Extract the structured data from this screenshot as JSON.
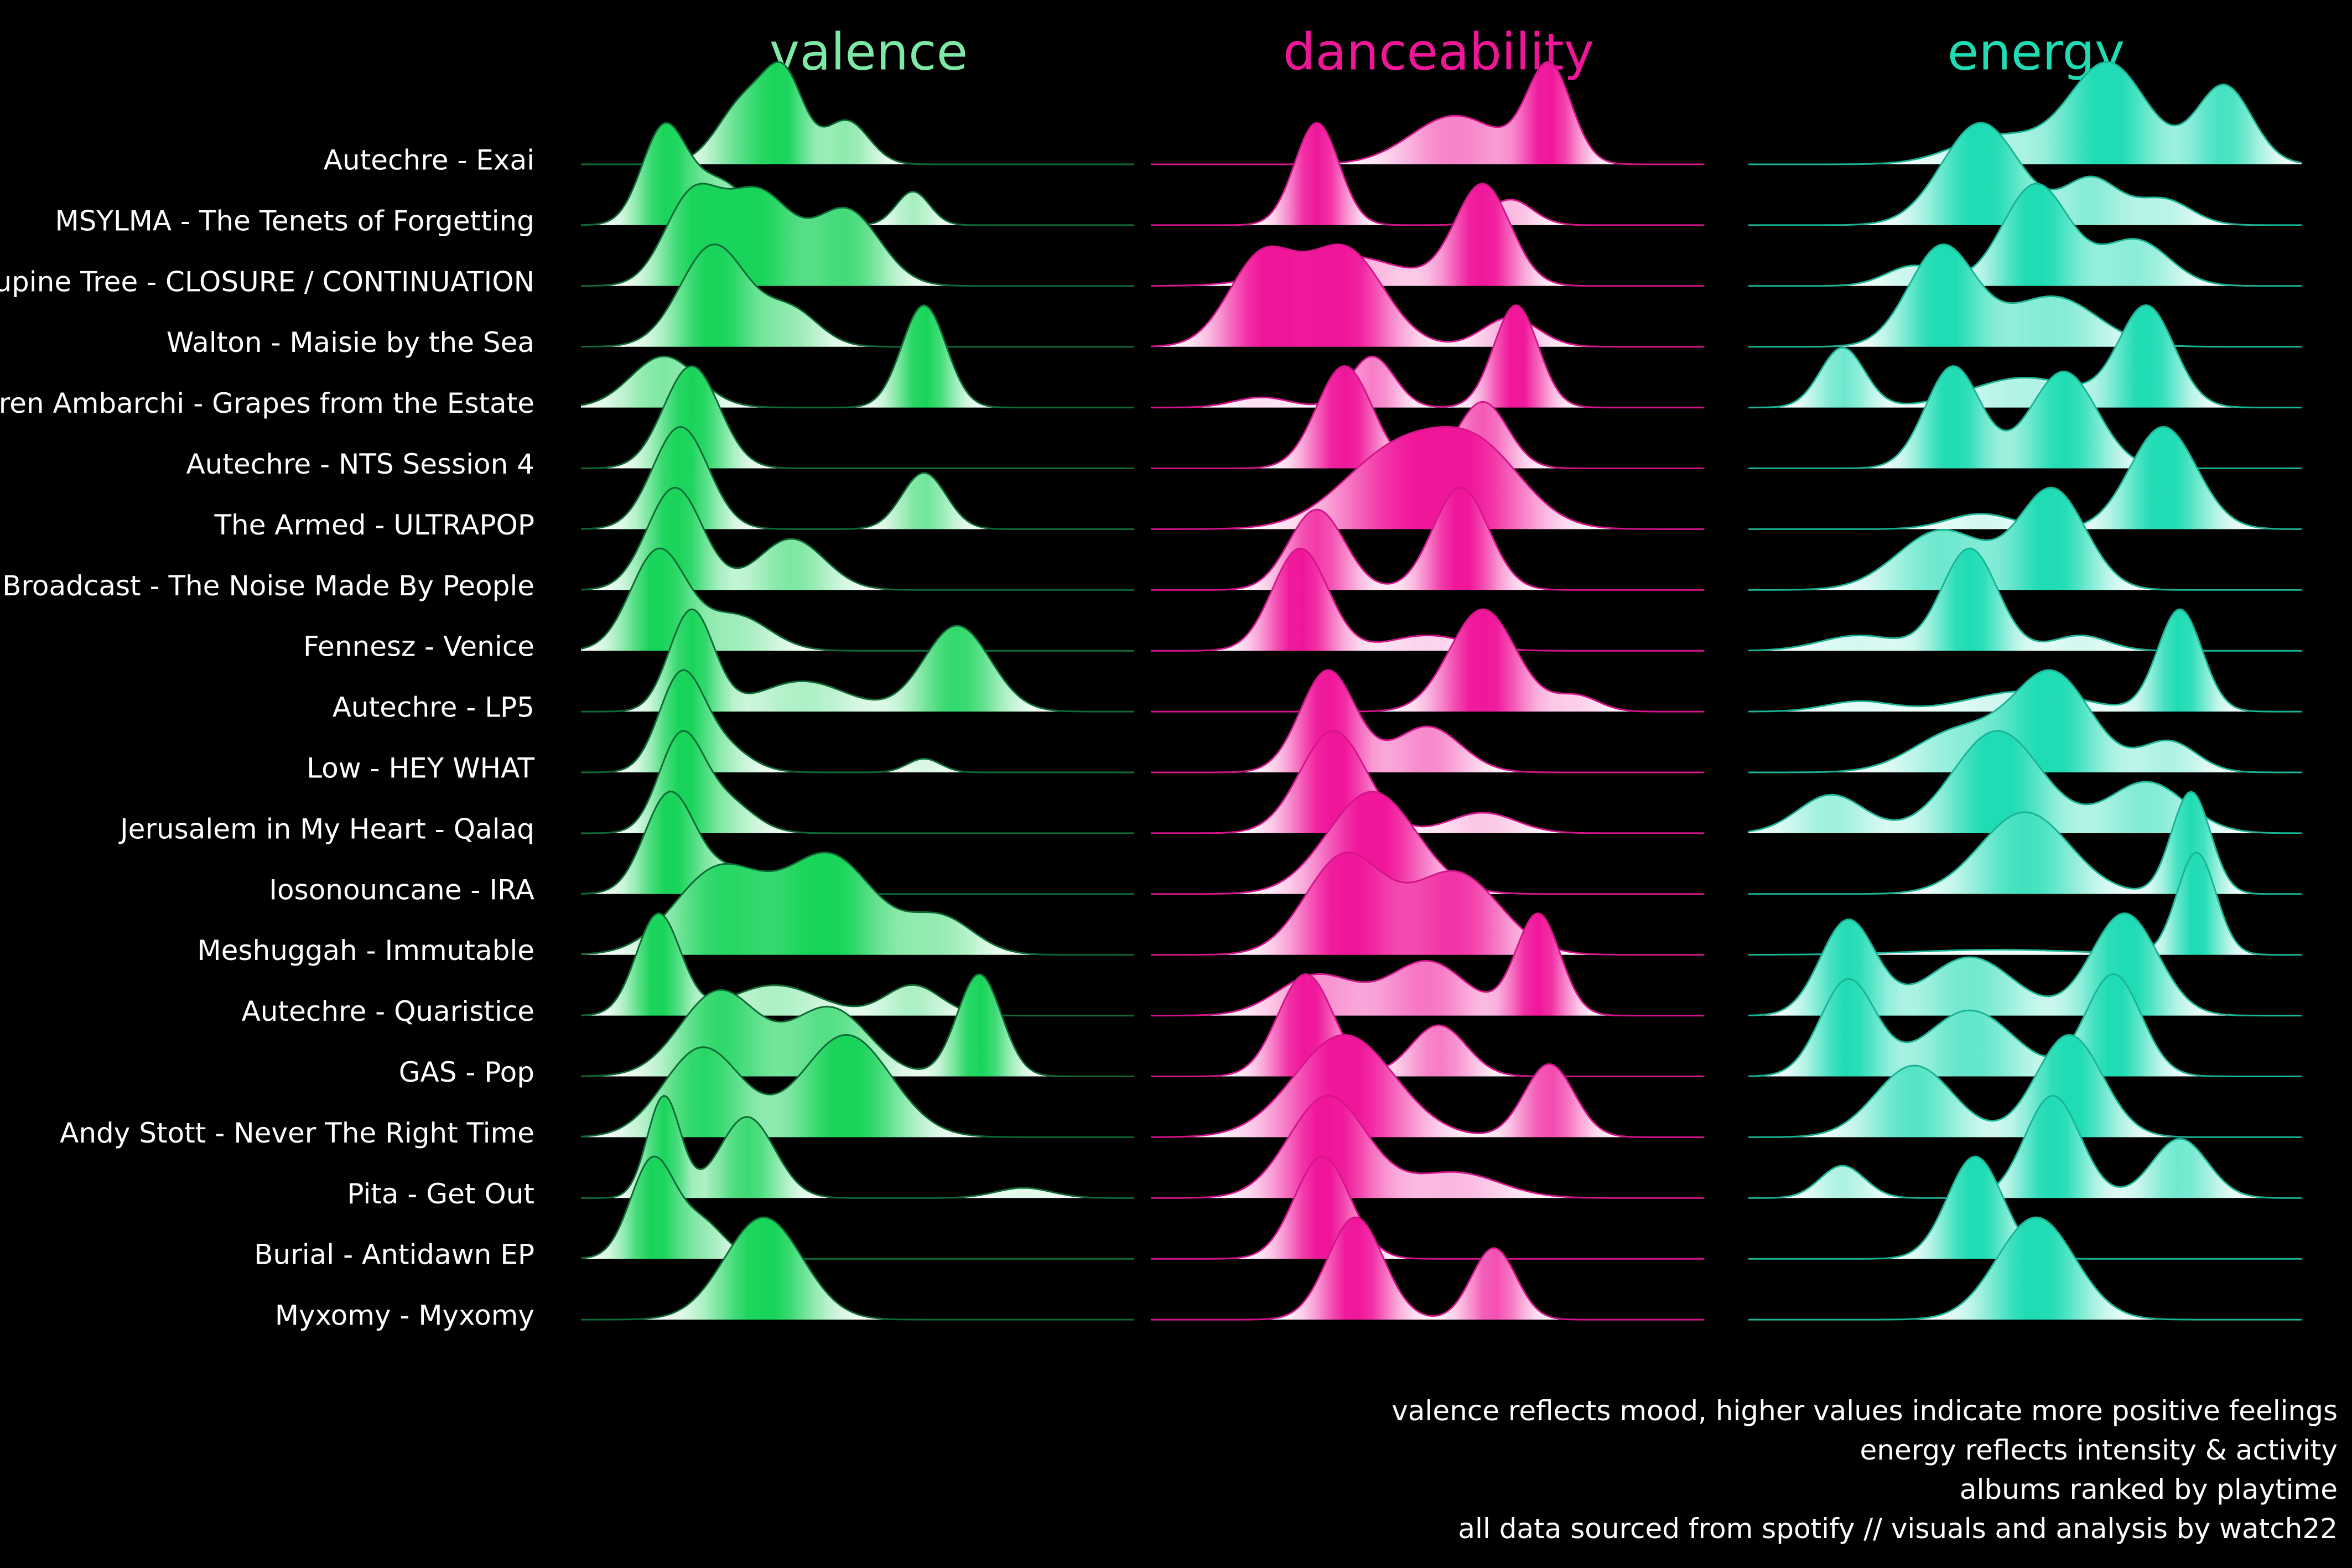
{
  "chart_data": {
    "type": "ridgeline",
    "metrics": [
      {
        "key": "valence",
        "title": "valence",
        "color": "#19d45a",
        "title_color": "#7ee8a6",
        "stroke": "#0f6a35"
      },
      {
        "key": "danceability",
        "title": "danceability",
        "color": "#f0169a",
        "title_color": "#f0169a",
        "stroke": "#d4148a"
      },
      {
        "key": "energy",
        "title": "energy",
        "color": "#1fdcb4",
        "title_color": "#1fdcb4",
        "stroke": "#19b496"
      }
    ],
    "albums": [
      {
        "name": "Autechre - Exai",
        "valence": [
          [
            0.3,
            0.9,
            0.05
          ],
          [
            0.37,
            1.0,
            0.035
          ],
          [
            0.48,
            0.6,
            0.04
          ]
        ],
        "danceability": [
          [
            0.55,
            0.5,
            0.08
          ],
          [
            0.72,
            1.0,
            0.04
          ]
        ],
        "energy": [
          [
            0.45,
            0.25,
            0.08
          ],
          [
            0.65,
            0.9,
            0.07
          ],
          [
            0.86,
            0.7,
            0.05
          ]
        ]
      },
      {
        "name": "MSYLMA - The Tenets of Forgetting",
        "valence": [
          [
            0.15,
            1.0,
            0.04
          ],
          [
            0.25,
            0.45,
            0.05
          ],
          [
            0.6,
            0.35,
            0.03
          ]
        ],
        "danceability": [
          [
            0.3,
            1.0,
            0.04
          ],
          [
            0.65,
            0.25,
            0.04
          ]
        ],
        "energy": [
          [
            0.42,
            1.0,
            0.07
          ],
          [
            0.62,
            0.45,
            0.05
          ],
          [
            0.75,
            0.25,
            0.05
          ]
        ]
      },
      {
        "name": "Porcupine Tree - CLOSURE / CONTINUATION",
        "valence": [
          [
            0.2,
            0.8,
            0.05
          ],
          [
            0.32,
            0.85,
            0.06
          ],
          [
            0.48,
            0.7,
            0.06
          ]
        ],
        "danceability": [
          [
            0.35,
            0.3,
            0.1
          ],
          [
            0.6,
            1.0,
            0.05
          ]
        ],
        "energy": [
          [
            0.3,
            0.2,
            0.05
          ],
          [
            0.52,
            1.0,
            0.06
          ],
          [
            0.7,
            0.45,
            0.06
          ]
        ]
      },
      {
        "name": "Walton - Maisie by the Sea",
        "valence": [
          [
            0.24,
            1.0,
            0.06
          ],
          [
            0.38,
            0.35,
            0.05
          ]
        ],
        "danceability": [
          [
            0.2,
            0.45,
            0.06
          ],
          [
            0.35,
            0.5,
            0.07
          ],
          [
            0.65,
            0.15,
            0.05
          ]
        ],
        "energy": [
          [
            0.35,
            1.0,
            0.06
          ],
          [
            0.55,
            0.5,
            0.08
          ]
        ]
      },
      {
        "name": "Oren Ambarchi - Grapes from the Estate",
        "valence": [
          [
            0.15,
            0.5,
            0.06
          ],
          [
            0.62,
            1.0,
            0.04
          ]
        ],
        "danceability": [
          [
            0.4,
            0.5,
            0.04
          ],
          [
            0.66,
            1.0,
            0.04
          ],
          [
            0.2,
            0.1,
            0.05
          ]
        ],
        "energy": [
          [
            0.17,
            0.6,
            0.04
          ],
          [
            0.72,
            1.0,
            0.05
          ],
          [
            0.5,
            0.3,
            0.1
          ]
        ]
      },
      {
        "name": "Autechre - NTS Session 4",
        "valence": [
          [
            0.2,
            1.0,
            0.05
          ]
        ],
        "danceability": [
          [
            0.35,
            1.0,
            0.05
          ],
          [
            0.6,
            0.65,
            0.045
          ]
        ],
        "energy": [
          [
            0.37,
            1.0,
            0.05
          ],
          [
            0.57,
            0.95,
            0.06
          ]
        ]
      },
      {
        "name": "The Armed - ULTRAPOP",
        "valence": [
          [
            0.18,
            1.0,
            0.05
          ],
          [
            0.62,
            0.55,
            0.04
          ]
        ],
        "danceability": [
          [
            0.45,
            0.5,
            0.1
          ],
          [
            0.6,
            0.4,
            0.08
          ]
        ],
        "energy": [
          [
            0.42,
            0.15,
            0.06
          ],
          [
            0.75,
            1.0,
            0.06
          ]
        ]
      },
      {
        "name": "Broadcast - The Noise Made By People",
        "valence": [
          [
            0.17,
            1.0,
            0.05
          ],
          [
            0.38,
            0.5,
            0.06
          ]
        ],
        "danceability": [
          [
            0.3,
            0.55,
            0.05
          ],
          [
            0.56,
            0.7,
            0.05
          ]
        ],
        "energy": [
          [
            0.35,
            0.6,
            0.08
          ],
          [
            0.55,
            1.0,
            0.06
          ]
        ]
      },
      {
        "name": "Fennesz - Venice",
        "valence": [
          [
            0.14,
            1.0,
            0.05
          ],
          [
            0.28,
            0.35,
            0.06
          ]
        ],
        "danceability": [
          [
            0.27,
            1.0,
            0.05
          ],
          [
            0.5,
            0.15,
            0.07
          ]
        ],
        "energy": [
          [
            0.4,
            1.0,
            0.05
          ],
          [
            0.2,
            0.15,
            0.07
          ],
          [
            0.6,
            0.15,
            0.05
          ]
        ]
      },
      {
        "name": "Autechre - LP5",
        "valence": [
          [
            0.2,
            1.0,
            0.04
          ],
          [
            0.4,
            0.3,
            0.08
          ],
          [
            0.68,
            0.85,
            0.06
          ]
        ],
        "danceability": [
          [
            0.6,
            1.0,
            0.06
          ],
          [
            0.77,
            0.15,
            0.04
          ]
        ],
        "energy": [
          [
            0.2,
            0.1,
            0.06
          ],
          [
            0.5,
            0.2,
            0.1
          ],
          [
            0.78,
            1.0,
            0.04
          ]
        ]
      },
      {
        "name": "Low - HEY WHAT",
        "valence": [
          [
            0.18,
            1.0,
            0.04
          ],
          [
            0.25,
            0.3,
            0.05
          ],
          [
            0.62,
            0.15,
            0.03
          ]
        ],
        "danceability": [
          [
            0.32,
            1.0,
            0.05
          ],
          [
            0.5,
            0.45,
            0.06
          ]
        ],
        "energy": [
          [
            0.38,
            0.4,
            0.08
          ],
          [
            0.55,
            0.95,
            0.07
          ],
          [
            0.76,
            0.3,
            0.05
          ]
        ]
      },
      {
        "name": "Jerusalem in My Heart - Qalaq",
        "valence": [
          [
            0.18,
            1.0,
            0.04
          ],
          [
            0.26,
            0.35,
            0.05
          ]
        ],
        "danceability": [
          [
            0.33,
            1.0,
            0.06
          ],
          [
            0.6,
            0.2,
            0.06
          ]
        ],
        "energy": [
          [
            0.15,
            0.3,
            0.06
          ],
          [
            0.45,
            0.8,
            0.08
          ],
          [
            0.72,
            0.4,
            0.07
          ]
        ]
      },
      {
        "name": "Iosonouncane - IRA",
        "valence": [
          [
            0.16,
            1.0,
            0.045
          ],
          [
            0.28,
            0.25,
            0.06
          ]
        ],
        "danceability": [
          [
            0.4,
            1.0,
            0.08
          ]
        ],
        "energy": [
          [
            0.5,
            0.8,
            0.08
          ],
          [
            0.8,
            1.0,
            0.035
          ]
        ]
      },
      {
        "name": "Meshuggah - Immutable",
        "valence": [
          [
            0.25,
            0.7,
            0.08
          ],
          [
            0.45,
            0.8,
            0.08
          ],
          [
            0.65,
            0.3,
            0.06
          ]
        ],
        "danceability": [
          [
            0.35,
            0.6,
            0.07
          ],
          [
            0.55,
            0.5,
            0.08
          ]
        ],
        "energy": [
          [
            0.45,
            0.05,
            0.15
          ],
          [
            0.81,
            1.0,
            0.035
          ]
        ]
      },
      {
        "name": "Autechre - Quaristice",
        "valence": [
          [
            0.14,
            1.0,
            0.04
          ],
          [
            0.35,
            0.3,
            0.08
          ],
          [
            0.6,
            0.3,
            0.05
          ]
        ],
        "danceability": [
          [
            0.3,
            0.3,
            0.07
          ],
          [
            0.5,
            0.4,
            0.07
          ],
          [
            0.7,
            0.75,
            0.04
          ]
        ],
        "energy": [
          [
            0.18,
            0.65,
            0.05
          ],
          [
            0.4,
            0.4,
            0.08
          ],
          [
            0.68,
            0.7,
            0.06
          ]
        ]
      },
      {
        "name": "GAS - Pop",
        "valence": [
          [
            0.25,
            0.5,
            0.07
          ],
          [
            0.45,
            0.4,
            0.07
          ],
          [
            0.72,
            0.6,
            0.04
          ]
        ],
        "danceability": [
          [
            0.28,
            1.0,
            0.05
          ],
          [
            0.52,
            0.5,
            0.05
          ]
        ],
        "energy": [
          [
            0.18,
            0.8,
            0.05
          ],
          [
            0.4,
            0.55,
            0.08
          ],
          [
            0.66,
            0.85,
            0.05
          ]
        ]
      },
      {
        "name": "Andy Stott - Never The Right Time",
        "valence": [
          [
            0.22,
            0.7,
            0.07
          ],
          [
            0.48,
            0.8,
            0.08
          ]
        ],
        "danceability": [
          [
            0.35,
            0.7,
            0.09
          ],
          [
            0.72,
            0.5,
            0.045
          ]
        ],
        "energy": [
          [
            0.3,
            0.7,
            0.07
          ],
          [
            0.58,
            1.0,
            0.06
          ]
        ]
      },
      {
        "name": "Pita - Get Out",
        "valence": [
          [
            0.15,
            1.0,
            0.03
          ],
          [
            0.3,
            0.8,
            0.05
          ],
          [
            0.8,
            0.1,
            0.05
          ]
        ],
        "danceability": [
          [
            0.32,
            0.8,
            0.07
          ],
          [
            0.55,
            0.2,
            0.08
          ]
        ],
        "energy": [
          [
            0.17,
            0.3,
            0.04
          ],
          [
            0.55,
            0.95,
            0.05
          ],
          [
            0.78,
            0.55,
            0.05
          ]
        ]
      },
      {
        "name": "Burial - Antidawn EP",
        "valence": [
          [
            0.13,
            1.0,
            0.04
          ],
          [
            0.22,
            0.35,
            0.04
          ]
        ],
        "danceability": [
          [
            0.31,
            1.0,
            0.05
          ]
        ],
        "energy": [
          [
            0.41,
            1.0,
            0.05
          ]
        ]
      },
      {
        "name": "Myxomy - Myxomy",
        "valence": [
          [
            0.33,
            1.0,
            0.07
          ]
        ],
        "danceability": [
          [
            0.37,
            1.0,
            0.05
          ],
          [
            0.62,
            0.7,
            0.04
          ]
        ],
        "energy": [
          [
            0.52,
            1.0,
            0.07
          ]
        ]
      }
    ]
  },
  "notes": [
    "valence reflects mood, higher values indicate more positive feelings",
    "energy reflects intensity & activity",
    "albums ranked by playtime",
    "all data sourced from spotify // visuals and analysis by watch22"
  ]
}
